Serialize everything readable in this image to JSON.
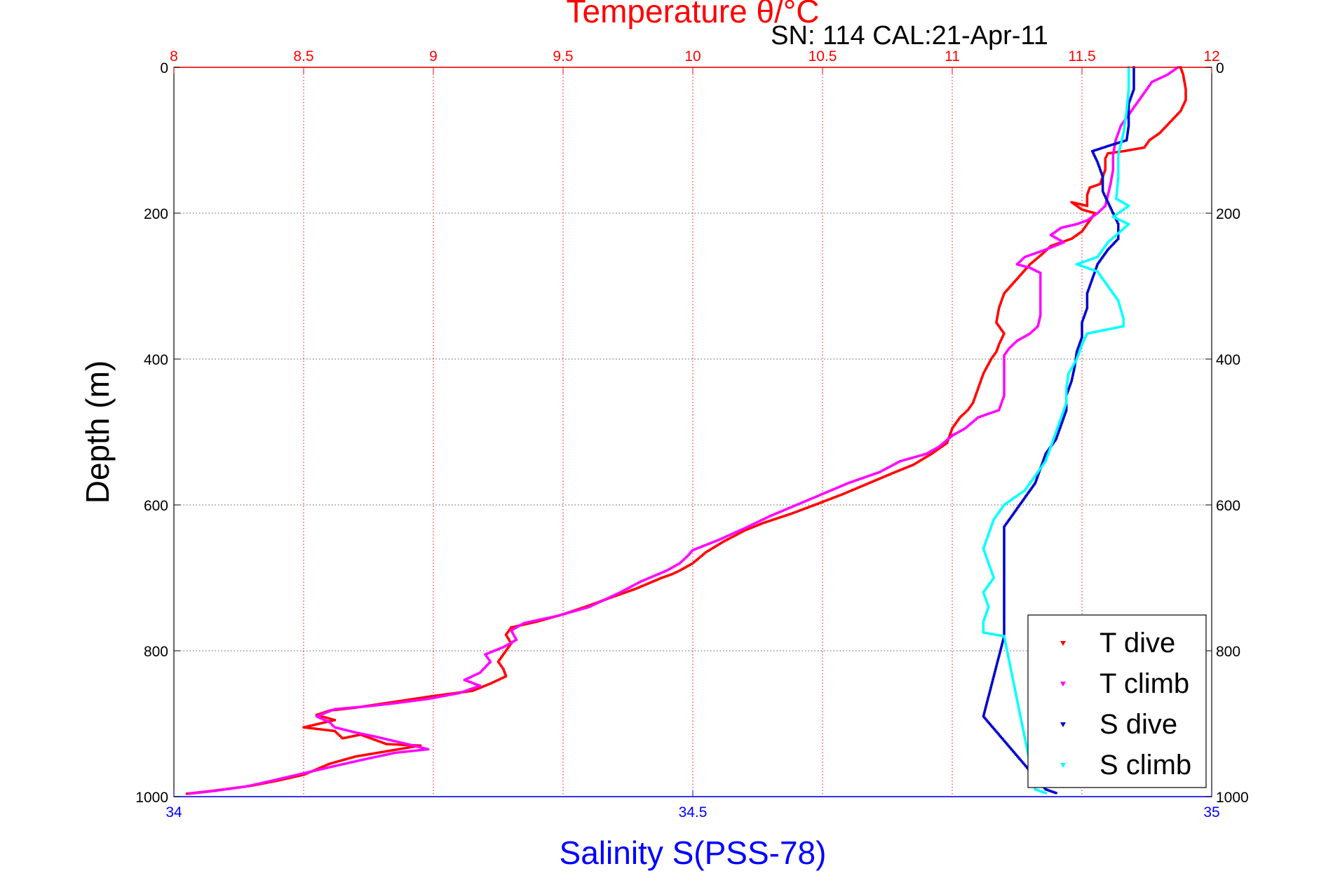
{
  "chart_data": {
    "type": "scatter",
    "title": "Temperature θ/°C",
    "subtitle": "SN: 114  CAL:21-Apr-11",
    "xlabel": "Salinity S(PSS-78)",
    "ylabel": "Depth (m)",
    "x_top": {
      "label": "Temperature θ/°C",
      "range": [
        8,
        12
      ],
      "ticks": [
        "8",
        "8.5",
        "9",
        "9.5",
        "10",
        "10.5",
        "11",
        "11.5",
        "12"
      ],
      "color": "#ff0000"
    },
    "x_bottom": {
      "label": "Salinity S(PSS-78)",
      "range": [
        34,
        35
      ],
      "ticks": [
        "34",
        "34.5",
        "35"
      ],
      "color": "#0000ff"
    },
    "y": {
      "range": [
        0,
        1000
      ],
      "reversed": true,
      "ticks": [
        "0",
        "200",
        "400",
        "600",
        "800",
        "1000"
      ]
    },
    "grid": true,
    "legend_position": "bottom-right",
    "series": [
      {
        "name": "T dive",
        "axis": "temperature",
        "color": "#ff0000",
        "points": [
          [
            11.88,
            0
          ],
          [
            11.89,
            10
          ],
          [
            11.9,
            30
          ],
          [
            11.9,
            45
          ],
          [
            11.88,
            60
          ],
          [
            11.84,
            75
          ],
          [
            11.8,
            90
          ],
          [
            11.76,
            100
          ],
          [
            11.74,
            110
          ],
          [
            11.66,
            115
          ],
          [
            11.6,
            118
          ],
          [
            11.59,
            125
          ],
          [
            11.59,
            140
          ],
          [
            11.57,
            160
          ],
          [
            11.53,
            165
          ],
          [
            11.52,
            175
          ],
          [
            11.52,
            190
          ],
          [
            11.46,
            185
          ],
          [
            11.5,
            195
          ],
          [
            11.55,
            200
          ],
          [
            11.52,
            215
          ],
          [
            11.5,
            225
          ],
          [
            11.46,
            235
          ],
          [
            11.38,
            245
          ],
          [
            11.35,
            255
          ],
          [
            11.3,
            270
          ],
          [
            11.25,
            290
          ],
          [
            11.2,
            310
          ],
          [
            11.18,
            330
          ],
          [
            11.17,
            350
          ],
          [
            11.2,
            365
          ],
          [
            11.18,
            380
          ],
          [
            11.17,
            390
          ],
          [
            11.15,
            400
          ],
          [
            11.12,
            420
          ],
          [
            11.1,
            440
          ],
          [
            11.08,
            460
          ],
          [
            11.06,
            470
          ],
          [
            11.03,
            480
          ],
          [
            11,
            495
          ],
          [
            10.98,
            515
          ],
          [
            10.92,
            530
          ],
          [
            10.85,
            545
          ],
          [
            10.78,
            555
          ],
          [
            10.68,
            570
          ],
          [
            10.58,
            585
          ],
          [
            10.47,
            600
          ],
          [
            10.38,
            612
          ],
          [
            10.27,
            625
          ],
          [
            10.2,
            635
          ],
          [
            10.12,
            650
          ],
          [
            10.05,
            665
          ],
          [
            10,
            680
          ],
          [
            9.95,
            690
          ],
          [
            9.92,
            695
          ],
          [
            9.88,
            700
          ],
          [
            9.78,
            715
          ],
          [
            9.7,
            725
          ],
          [
            9.6,
            738
          ],
          [
            9.5,
            750
          ],
          [
            9.4,
            760
          ],
          [
            9.3,
            768
          ],
          [
            9.28,
            778
          ],
          [
            9.3,
            790
          ],
          [
            9.28,
            800
          ],
          [
            9.25,
            815
          ],
          [
            9.27,
            825
          ],
          [
            9.28,
            835
          ],
          [
            9.22,
            845
          ],
          [
            9.15,
            855
          ],
          [
            9,
            862
          ],
          [
            8.85,
            870
          ],
          [
            8.7,
            878
          ],
          [
            8.6,
            882
          ],
          [
            8.55,
            888
          ],
          [
            8.62,
            895
          ],
          [
            8.5,
            905
          ],
          [
            8.62,
            910
          ],
          [
            8.65,
            920
          ],
          [
            8.72,
            915
          ],
          [
            8.82,
            928
          ],
          [
            8.95,
            930
          ],
          [
            8.7,
            945
          ],
          [
            8.6,
            955
          ],
          [
            8.5,
            970
          ],
          [
            8.4,
            978
          ],
          [
            8.3,
            985
          ],
          [
            8.15,
            992
          ],
          [
            8.05,
            996
          ]
        ]
      },
      {
        "name": "T climb",
        "axis": "temperature",
        "color": "#ff00ff",
        "points": [
          [
            11.87,
            0
          ],
          [
            11.83,
            10
          ],
          [
            11.77,
            20
          ],
          [
            11.74,
            35
          ],
          [
            11.71,
            50
          ],
          [
            11.68,
            65
          ],
          [
            11.65,
            80
          ],
          [
            11.63,
            100
          ],
          [
            11.62,
            120
          ],
          [
            11.62,
            140
          ],
          [
            11.61,
            160
          ],
          [
            11.6,
            175
          ],
          [
            11.59,
            190
          ],
          [
            11.56,
            200
          ],
          [
            11.52,
            210
          ],
          [
            11.48,
            215
          ],
          [
            11.42,
            220
          ],
          [
            11.38,
            230
          ],
          [
            11.43,
            240
          ],
          [
            11.36,
            250
          ],
          [
            11.28,
            260
          ],
          [
            11.25,
            270
          ],
          [
            11.3,
            275
          ],
          [
            11.34,
            282
          ],
          [
            11.34,
            300
          ],
          [
            11.34,
            320
          ],
          [
            11.34,
            340
          ],
          [
            11.33,
            355
          ],
          [
            11.3,
            365
          ],
          [
            11.25,
            375
          ],
          [
            11.22,
            385
          ],
          [
            11.2,
            395
          ],
          [
            11.2,
            420
          ],
          [
            11.2,
            450
          ],
          [
            11.18,
            470
          ],
          [
            11.1,
            480
          ],
          [
            11.05,
            495
          ],
          [
            11,
            505
          ],
          [
            10.95,
            520
          ],
          [
            10.9,
            530
          ],
          [
            10.8,
            540
          ],
          [
            10.72,
            555
          ],
          [
            10.6,
            570
          ],
          [
            10.5,
            585
          ],
          [
            10.4,
            600
          ],
          [
            10.3,
            615
          ],
          [
            10.2,
            632
          ],
          [
            10.1,
            648
          ],
          [
            10,
            662
          ],
          [
            9.98,
            670
          ],
          [
            9.95,
            680
          ],
          [
            9.9,
            690
          ],
          [
            9.8,
            705
          ],
          [
            9.72,
            720
          ],
          [
            9.6,
            740
          ],
          [
            9.48,
            752
          ],
          [
            9.35,
            762
          ],
          [
            9.3,
            772
          ],
          [
            9.32,
            785
          ],
          [
            9.27,
            795
          ],
          [
            9.2,
            805
          ],
          [
            9.22,
            815
          ],
          [
            9.18,
            830
          ],
          [
            9.12,
            840
          ],
          [
            9.18,
            848
          ],
          [
            9.1,
            858
          ],
          [
            8.98,
            866
          ],
          [
            8.85,
            872
          ],
          [
            8.75,
            876
          ],
          [
            8.62,
            880
          ],
          [
            8.55,
            890
          ],
          [
            8.6,
            898
          ],
          [
            8.62,
            905
          ],
          [
            8.7,
            912
          ],
          [
            8.78,
            918
          ],
          [
            8.9,
            928
          ],
          [
            8.98,
            935
          ],
          [
            8.85,
            940
          ],
          [
            8.72,
            950
          ],
          [
            8.62,
            958
          ],
          [
            8.5,
            968
          ],
          [
            8.38,
            978
          ],
          [
            8.28,
            986
          ],
          [
            8.16,
            992
          ],
          [
            8.06,
            996
          ]
        ]
      },
      {
        "name": "S dive",
        "axis": "salinity",
        "color": "#0000cc",
        "points": [
          [
            34.925,
            0
          ],
          [
            34.925,
            30
          ],
          [
            34.92,
            50
          ],
          [
            34.92,
            80
          ],
          [
            34.918,
            100
          ],
          [
            34.9,
            108
          ],
          [
            34.885,
            115
          ],
          [
            34.89,
            130
          ],
          [
            34.895,
            150
          ],
          [
            34.895,
            170
          ],
          [
            34.9,
            185
          ],
          [
            34.905,
            200
          ],
          [
            34.91,
            215
          ],
          [
            34.91,
            235
          ],
          [
            34.9,
            250
          ],
          [
            34.89,
            270
          ],
          [
            34.885,
            290
          ],
          [
            34.88,
            310
          ],
          [
            34.88,
            330
          ],
          [
            34.875,
            350
          ],
          [
            34.875,
            370
          ],
          [
            34.87,
            390
          ],
          [
            34.868,
            410
          ],
          [
            34.865,
            430
          ],
          [
            34.86,
            450
          ],
          [
            34.86,
            470
          ],
          [
            34.855,
            490
          ],
          [
            34.85,
            510
          ],
          [
            34.84,
            530
          ],
          [
            34.835,
            550
          ],
          [
            34.83,
            570
          ],
          [
            34.82,
            590
          ],
          [
            34.81,
            610
          ],
          [
            34.8,
            630
          ],
          [
            34.8,
            650
          ],
          [
            34.8,
            670
          ],
          [
            34.8,
            690
          ],
          [
            34.8,
            710
          ],
          [
            34.8,
            730
          ],
          [
            34.8,
            745
          ],
          [
            34.8,
            760
          ],
          [
            34.8,
            770
          ],
          [
            34.8,
            780
          ],
          [
            34.78,
            890
          ],
          [
            34.84,
            990
          ],
          [
            34.85,
            995
          ]
        ]
      },
      {
        "name": "S climb",
        "axis": "salinity",
        "color": "#00ffff",
        "points": [
          [
            34.92,
            0
          ],
          [
            34.92,
            30
          ],
          [
            34.918,
            60
          ],
          [
            34.915,
            90
          ],
          [
            34.91,
            120
          ],
          [
            34.91,
            150
          ],
          [
            34.908,
            180
          ],
          [
            34.92,
            190
          ],
          [
            34.905,
            205
          ],
          [
            34.92,
            215
          ],
          [
            34.9,
            240
          ],
          [
            34.89,
            260
          ],
          [
            34.87,
            270
          ],
          [
            34.89,
            280
          ],
          [
            34.9,
            300
          ],
          [
            34.91,
            320
          ],
          [
            34.915,
            345
          ],
          [
            34.915,
            355
          ],
          [
            34.88,
            365
          ],
          [
            34.875,
            380
          ],
          [
            34.87,
            400
          ],
          [
            34.862,
            420
          ],
          [
            34.86,
            440
          ],
          [
            34.86,
            460
          ],
          [
            34.855,
            480
          ],
          [
            34.85,
            500
          ],
          [
            34.845,
            520
          ],
          [
            34.84,
            540
          ],
          [
            34.83,
            560
          ],
          [
            34.82,
            580
          ],
          [
            34.8,
            600
          ],
          [
            34.79,
            620
          ],
          [
            34.785,
            640
          ],
          [
            34.78,
            660
          ],
          [
            34.785,
            680
          ],
          [
            34.79,
            700
          ],
          [
            34.78,
            720
          ],
          [
            34.785,
            740
          ],
          [
            34.78,
            760
          ],
          [
            34.78,
            775
          ],
          [
            34.8,
            780
          ],
          [
            34.83,
            990
          ],
          [
            34.84,
            995
          ]
        ]
      }
    ]
  }
}
